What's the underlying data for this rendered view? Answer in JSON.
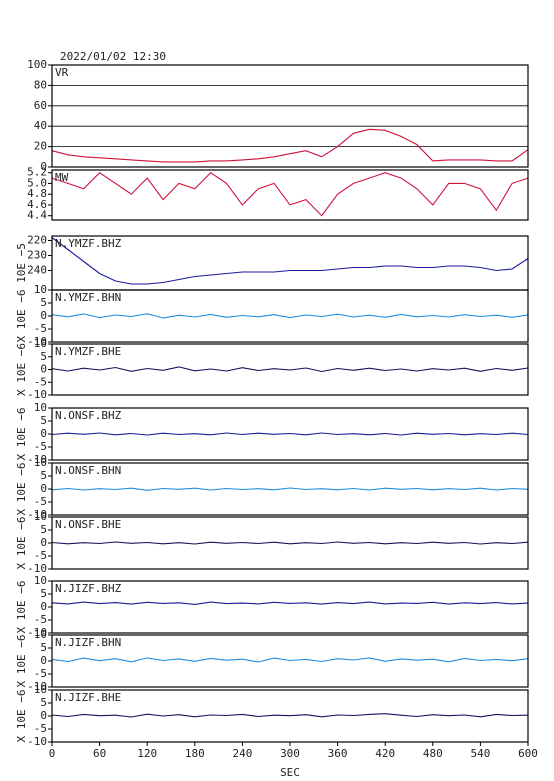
{
  "chart_data": [
    {
      "type": "line",
      "title": "2022/01/02 12:30",
      "label": "VR",
      "x": [
        0,
        20,
        40,
        60,
        80,
        100,
        120,
        140,
        160,
        180,
        200,
        220,
        240,
        260,
        280,
        300,
        320,
        340,
        360,
        380,
        400,
        420,
        440,
        460,
        480,
        500,
        520,
        540,
        560,
        580,
        600
      ],
      "series": [
        {
          "color": "#d0103a",
          "values": [
            16,
            12,
            10,
            9,
            8,
            7,
            6,
            5,
            5,
            5,
            6,
            6,
            7,
            8,
            10,
            13,
            16,
            10,
            20,
            33,
            37,
            36,
            30,
            22,
            6,
            7,
            7,
            7,
            6,
            6,
            17
          ]
        }
      ],
      "ylim": [
        0,
        100
      ],
      "yticks": [
        0,
        20,
        40,
        60,
        80,
        100
      ],
      "grid": true
    },
    {
      "type": "line",
      "label": "MW",
      "x": [
        0,
        20,
        40,
        60,
        80,
        100,
        120,
        140,
        160,
        180,
        200,
        220,
        240,
        260,
        280,
        300,
        320,
        340,
        360,
        380,
        400,
        420,
        440,
        460,
        480,
        500,
        520,
        540,
        560,
        580,
        600
      ],
      "series": [
        {
          "color": "#d0103a",
          "values": [
            5.1,
            5.0,
            4.9,
            5.2,
            5.0,
            4.8,
            5.1,
            4.7,
            5.0,
            4.9,
            5.2,
            5.0,
            4.6,
            4.9,
            5.0,
            4.6,
            4.7,
            4.4,
            4.8,
            5.0,
            5.1,
            5.2,
            5.1,
            4.9,
            4.6,
            5.0,
            5.0,
            4.9,
            4.5,
            5.0,
            5.1
          ]
        }
      ],
      "ylim": [
        4.32,
        5.25
      ],
      "yticks": [
        {
          "value": 4.4,
          "label": "4.4"
        },
        {
          "value": 4.6,
          "label": "4.6"
        },
        {
          "value": 4.8,
          "label": "4.8"
        },
        {
          "value": 5,
          "label": "5.0"
        },
        {
          "value": 5.2,
          "label": "5.2"
        }
      ],
      "grid": false
    },
    {
      "type": "line",
      "label": "N.YMZF.BHZ",
      "ylabel": "10E −5",
      "x": [
        0,
        20,
        40,
        60,
        80,
        100,
        120,
        140,
        160,
        180,
        200,
        220,
        240,
        260,
        280,
        300,
        320,
        340,
        360,
        380,
        400,
        420,
        440,
        460,
        480,
        500,
        520,
        540,
        560,
        580,
        600
      ],
      "series": [
        {
          "color": "#1a1a9a",
          "values": [
            218,
            226,
            234,
            242,
            247,
            249,
            249,
            248,
            246,
            244,
            243,
            242,
            241,
            241,
            241,
            240,
            240,
            240,
            239,
            238,
            238,
            237,
            237,
            238,
            238,
            237,
            237,
            238,
            240,
            239,
            232
          ]
        }
      ],
      "ylim": [
        253,
        217
      ],
      "yticks": [
        220,
        230,
        240
      ],
      "grid": false
    },
    {
      "type": "line",
      "label": "N.YMZF.BHN",
      "ylabel": "X 10E −6",
      "x": [
        0,
        20,
        40,
        60,
        80,
        100,
        120,
        140,
        160,
        180,
        200,
        220,
        240,
        260,
        280,
        300,
        320,
        340,
        360,
        380,
        400,
        420,
        440,
        460,
        480,
        500,
        520,
        540,
        560,
        580,
        600
      ],
      "series": [
        {
          "color": "#1e8fe0",
          "values": [
            0.5,
            -0.3,
            0.8,
            -0.6,
            0.4,
            -0.2,
            0.9,
            -0.8,
            0.3,
            -0.4,
            0.6,
            -0.5,
            0.2,
            -0.3,
            0.5,
            -0.6,
            0.4,
            -0.2,
            0.7,
            -0.4,
            0.3,
            -0.5,
            0.6,
            -0.3,
            0.2,
            -0.4,
            0.5,
            -0.2,
            0.3,
            -0.5,
            0.4
          ]
        }
      ],
      "ylim": [
        -10,
        10
      ],
      "yticks": [
        -10,
        -5,
        0,
        5,
        10
      ],
      "grid": false
    },
    {
      "type": "line",
      "label": "N.YMZF.BHE",
      "ylabel": "X 10E −6",
      "x": [
        0,
        20,
        40,
        60,
        80,
        100,
        120,
        140,
        160,
        180,
        200,
        220,
        240,
        260,
        280,
        300,
        320,
        340,
        360,
        380,
        400,
        420,
        440,
        460,
        480,
        500,
        520,
        540,
        560,
        580,
        600
      ],
      "series": [
        {
          "color": "#14145a",
          "values": [
            0.3,
            -0.6,
            0.5,
            -0.2,
            0.8,
            -0.7,
            0.4,
            -0.3,
            1.0,
            -0.5,
            0.2,
            -0.6,
            0.7,
            -0.4,
            0.3,
            -0.2,
            0.6,
            -0.8,
            0.4,
            -0.3,
            0.5,
            -0.4,
            0.2,
            -0.6,
            0.3,
            -0.2,
            0.5,
            -0.7,
            0.4,
            -0.3,
            0.6
          ]
        }
      ],
      "ylim": [
        -10,
        10
      ],
      "yticks": [
        -10,
        -5,
        0,
        5,
        10
      ],
      "grid": false
    },
    {
      "type": "line",
      "label": "N.ONSF.BHZ",
      "ylabel": "X 10E −6",
      "x": [
        0,
        20,
        40,
        60,
        80,
        100,
        120,
        140,
        160,
        180,
        200,
        220,
        240,
        260,
        280,
        300,
        320,
        340,
        360,
        380,
        400,
        420,
        440,
        460,
        480,
        500,
        520,
        540,
        560,
        580,
        600
      ],
      "series": [
        {
          "color": "#1a1a9a",
          "values": [
            -0.2,
            0.3,
            -0.1,
            0.4,
            -0.3,
            0.2,
            -0.4,
            0.3,
            -0.2,
            0.1,
            -0.3,
            0.4,
            -0.2,
            0.3,
            -0.1,
            0.2,
            -0.3,
            0.4,
            -0.2,
            0.1,
            -0.3,
            0.2,
            -0.4,
            0.3,
            -0.1,
            0.2,
            -0.3,
            0.1,
            -0.2,
            0.3,
            -0.2
          ]
        }
      ],
      "ylim": [
        -10,
        10
      ],
      "yticks": [
        -10,
        -5,
        0,
        5,
        10
      ],
      "grid": false
    },
    {
      "type": "line",
      "label": "N.ONSF.BHN",
      "ylabel": "X 10E −6",
      "x": [
        0,
        20,
        40,
        60,
        80,
        100,
        120,
        140,
        160,
        180,
        200,
        220,
        240,
        260,
        280,
        300,
        320,
        340,
        360,
        380,
        400,
        420,
        440,
        460,
        480,
        500,
        520,
        540,
        560,
        580,
        600
      ],
      "series": [
        {
          "color": "#1e8fe0",
          "values": [
            -0.3,
            0.2,
            -0.4,
            0.1,
            -0.2,
            0.3,
            -0.5,
            0.2,
            -0.1,
            0.3,
            -0.4,
            0.2,
            -0.2,
            0.1,
            -0.3,
            0.4,
            -0.2,
            0.1,
            -0.3,
            0.2,
            -0.4,
            0.3,
            -0.1,
            0.2,
            -0.3,
            0.1,
            -0.2,
            0.3,
            -0.4,
            0.2,
            -0.1
          ]
        }
      ],
      "ylim": [
        -10,
        10
      ],
      "yticks": [
        -10,
        -5,
        0,
        5,
        10
      ],
      "grid": false
    },
    {
      "type": "line",
      "label": "N.ONSF.BHE",
      "ylabel": "X 10E −6",
      "x": [
        0,
        20,
        40,
        60,
        80,
        100,
        120,
        140,
        160,
        180,
        200,
        220,
        240,
        260,
        280,
        300,
        320,
        340,
        360,
        380,
        400,
        420,
        440,
        460,
        480,
        500,
        520,
        540,
        560,
        580,
        600
      ],
      "series": [
        {
          "color": "#14145a",
          "values": [
            0.2,
            -0.3,
            0.1,
            -0.2,
            0.4,
            -0.1,
            0.2,
            -0.3,
            0.1,
            -0.4,
            0.3,
            -0.1,
            0.2,
            -0.2,
            0.3,
            -0.3,
            0.1,
            -0.2,
            0.4,
            -0.1,
            0.2,
            -0.3,
            0.1,
            -0.2,
            0.3,
            -0.1,
            0.2,
            -0.4,
            0.1,
            -0.2,
            0.3
          ]
        }
      ],
      "ylim": [
        -10,
        10
      ],
      "yticks": [
        -10,
        -5,
        0,
        5,
        10
      ],
      "grid": false
    },
    {
      "type": "line",
      "label": "N.JIZF.BHZ",
      "ylabel": "X 10E −6",
      "x": [
        0,
        20,
        40,
        60,
        80,
        100,
        120,
        140,
        160,
        180,
        200,
        220,
        240,
        260,
        280,
        300,
        320,
        340,
        360,
        380,
        400,
        420,
        440,
        460,
        480,
        500,
        520,
        540,
        560,
        580,
        600
      ],
      "series": [
        {
          "color": "#1a1a9a",
          "values": [
            1.6,
            1.2,
            1.9,
            1.3,
            1.7,
            1.1,
            1.8,
            1.4,
            1.6,
            1.0,
            1.9,
            1.3,
            1.5,
            1.2,
            1.8,
            1.4,
            1.6,
            1.1,
            1.7,
            1.3,
            1.9,
            1.2,
            1.5,
            1.4,
            1.8,
            1.1,
            1.6,
            1.3,
            1.7,
            1.2,
            1.5
          ]
        }
      ],
      "ylim": [
        -10,
        10
      ],
      "yticks": [
        -10,
        -5,
        0,
        5,
        10
      ],
      "grid": false
    },
    {
      "type": "line",
      "label": "N.JIZF.BHN",
      "ylabel": "X 10E −6",
      "x": [
        0,
        20,
        40,
        60,
        80,
        100,
        120,
        140,
        160,
        180,
        200,
        220,
        240,
        260,
        280,
        300,
        320,
        340,
        360,
        380,
        400,
        420,
        440,
        460,
        480,
        500,
        520,
        540,
        560,
        580,
        600
      ],
      "series": [
        {
          "color": "#1e8fe0",
          "values": [
            0.6,
            -0.2,
            1.1,
            0.1,
            0.9,
            -0.3,
            1.2,
            0.2,
            0.8,
            -0.1,
            1.0,
            0.3,
            0.7,
            -0.4,
            1.1,
            0.2,
            0.6,
            -0.2,
            0.9,
            0.4,
            1.2,
            -0.1,
            0.8,
            0.3,
            0.7,
            -0.3,
            1.0,
            0.2,
            0.6,
            0.1,
            0.9
          ]
        }
      ],
      "ylim": [
        -10,
        10
      ],
      "yticks": [
        -10,
        -5,
        0,
        5,
        10
      ],
      "grid": false
    },
    {
      "type": "line",
      "label": "N.JIZF.BHE",
      "ylabel": "X 10E −6",
      "xlabel": "SEC",
      "x": [
        0,
        20,
        40,
        60,
        80,
        100,
        120,
        140,
        160,
        180,
        200,
        220,
        240,
        260,
        280,
        300,
        320,
        340,
        360,
        380,
        400,
        420,
        440,
        460,
        480,
        500,
        520,
        540,
        560,
        580,
        600
      ],
      "series": [
        {
          "color": "#14145a",
          "values": [
            0.4,
            -0.2,
            0.6,
            0.1,
            0.3,
            -0.4,
            0.7,
            0.0,
            0.5,
            -0.3,
            0.4,
            0.2,
            0.6,
            -0.2,
            0.3,
            0.1,
            0.5,
            -0.3,
            0.4,
            0.2,
            0.6,
            0.9,
            0.3,
            -0.2,
            0.5,
            0.1,
            0.4,
            -0.3,
            0.6,
            0.2,
            0.3
          ]
        }
      ],
      "ylim": [
        -10,
        10
      ],
      "yticks": [
        -10,
        -5,
        0,
        5,
        10
      ],
      "grid": false,
      "xlim": [
        0,
        600
      ],
      "xticks": [
        0,
        60,
        120,
        180,
        240,
        300,
        360,
        420,
        480,
        540,
        600
      ]
    }
  ]
}
